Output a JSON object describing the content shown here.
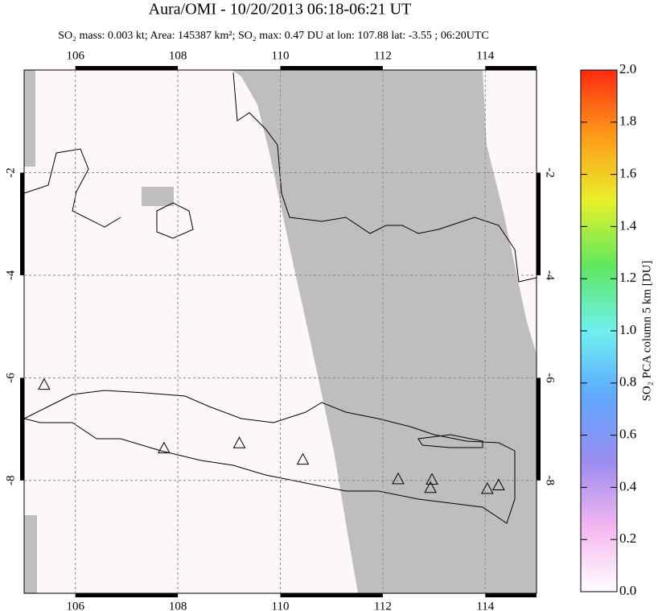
{
  "chart_data": {
    "type": "map",
    "title": "Aura/OMI - 10/20/2013 06:18-06:21 UT",
    "subtitle": "SO₂ mass: 0.003 kt; Area: 145387 km²; SO₂ max: 0.47 DU at lon: 107.88 lat: -3.55 ; 06:20UTC",
    "xlim": [
      105,
      115
    ],
    "xticks": [
      106,
      108,
      110,
      112,
      114
    ],
    "ylim": [
      -10.2,
      0
    ],
    "yticks": [
      -2,
      -4,
      -6,
      -8
    ],
    "grid": true,
    "volcanoes": {
      "x": [
        105.39,
        107.73,
        109.2,
        110.44,
        112.3,
        112.96,
        112.93,
        114.04,
        114.26
      ],
      "y": [
        -6.13,
        -7.37,
        -7.27,
        -7.59,
        -7.97,
        -7.98,
        -8.14,
        -8.16,
        -8.09
      ]
    },
    "colorbar": {
      "label": "SO₂ PCA column 5 km [DU]",
      "lim": [
        0,
        2
      ],
      "ticks": [
        {
          "value": 0,
          "label": "0.0"
        },
        0.2,
        0.4,
        0.6,
        0.8,
        {
          "value": 1,
          "label": "1.0"
        },
        1.2,
        1.4,
        1.6,
        1.8,
        {
          "value": 2,
          "label": "2.0"
        }
      ],
      "colors": [
        "#ffffff",
        "#f4b6f0",
        "#9a8cf0",
        "#5fa8ff",
        "#6ff0f0",
        "#5fe85f",
        "#e8f02a",
        "#ff9a1a",
        "#ff2a10"
      ]
    }
  }
}
